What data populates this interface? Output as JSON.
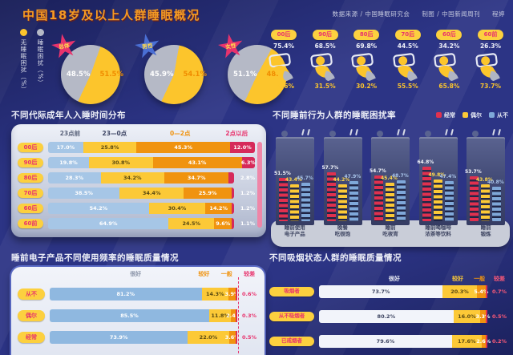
{
  "header": {
    "title": "中国18岁及以上人群睡眠概况",
    "credit_source": "数据来源 / 中国睡眠研究会",
    "credit_maker": "制图 / 中国新闻周刊",
    "credit_author": "程婷"
  },
  "colors": {
    "background": "#2c3485",
    "accent_yellow": "#fcc52c",
    "accent_gray": "#b5b9c6",
    "accent_red": "#d62a5a",
    "accent_orange": "#f0930f",
    "accent_blue": "#a6c6e6",
    "badge_bg": "#fcd03f",
    "badge_text": "#e8336d"
  },
  "chart_data": [
    {
      "type": "pie",
      "name": "overall-sleep-trouble",
      "legend": [
        {
          "label": "无睡眠困扰（%）",
          "color": "#fcc52c"
        },
        {
          "label": "睡眠困扰（%）",
          "color": "#b5b9c6"
        }
      ],
      "pies": [
        {
          "label": "总体",
          "badge_color": "#e8336d",
          "trouble": 48.5,
          "no_trouble": 51.5
        },
        {
          "label": "男性",
          "badge_color": "#4a6fd4",
          "trouble": 45.9,
          "no_trouble": 54.1
        },
        {
          "label": "女性",
          "badge_color": "#e8336d",
          "trouble": 51.1,
          "no_trouble": 48.9
        }
      ]
    },
    {
      "type": "bar",
      "name": "trouble-by-generation-pictogram",
      "groups": [
        {
          "label": "00后",
          "top": 75.4,
          "bottom": 24.6
        },
        {
          "label": "90后",
          "top": 68.5,
          "bottom": 31.5
        },
        {
          "label": "80后",
          "top": 69.8,
          "bottom": 30.2
        },
        {
          "label": "70后",
          "top": 44.5,
          "bottom": 55.5
        },
        {
          "label": "60后",
          "top": 34.2,
          "bottom": 65.8
        },
        {
          "label": "60前",
          "top": 26.3,
          "bottom": 73.7
        }
      ]
    },
    {
      "type": "bar",
      "name": "sleep-time-distribution",
      "title": "不同代际成年人入睡时间分布",
      "stacked": true,
      "columns": [
        "23点前",
        "23—0点",
        "0—2点",
        "2点以后"
      ],
      "colors": [
        "#a6c6e6",
        "#fcc937",
        "#f0930f",
        "#d62a5a"
      ],
      "categories": [
        "00后",
        "90后",
        "80后",
        "70后",
        "60后",
        "60前"
      ],
      "rows": [
        [
          17.0,
          25.8,
          45.3,
          12.0
        ],
        [
          19.8,
          30.8,
          43.1,
          6.3
        ],
        [
          28.3,
          34.2,
          34.7,
          2.8
        ],
        [
          38.5,
          34.4,
          25.9,
          1.2
        ],
        [
          54.2,
          30.4,
          14.2,
          1.2
        ],
        [
          64.9,
          24.5,
          9.6,
          1.1
        ]
      ]
    },
    {
      "type": "bar",
      "name": "bedtime-behavior-trouble-rate",
      "title": "不同睡前行为人群的睡眠困扰率",
      "legend": [
        {
          "label": "经常",
          "color": "#e0314f"
        },
        {
          "label": "偶尔",
          "color": "#fcc937"
        },
        {
          "label": "从不",
          "color": "#7fa8d9"
        }
      ],
      "buildings": [
        {
          "label": [
            "睡前使用",
            "电子产品"
          ],
          "values": [
            51.5,
            43.4,
            45.7
          ]
        },
        {
          "label": [
            "晚餐",
            "吃很饱"
          ],
          "values": [
            57.7,
            44.2,
            47.9
          ]
        },
        {
          "label": [
            "睡前",
            "吃夜宵"
          ],
          "values": [
            54.7,
            45.4,
            48.7
          ]
        },
        {
          "label": [
            "睡前喝咖啡",
            "浓茶等饮料"
          ],
          "values": [
            64.8,
            49.8,
            47.4
          ]
        },
        {
          "label": [
            "睡前",
            "锻炼"
          ],
          "values": [
            53.7,
            43.8,
            40.8
          ]
        }
      ]
    },
    {
      "type": "bar",
      "name": "electronics-frequency-sleep-quality",
      "title": "睡前电子产品不同使用频率的睡眠质量情况",
      "stacked": true,
      "columns": [
        "很好",
        "较好",
        "一般",
        "较差"
      ],
      "categories": [
        "从不",
        "偶尔",
        "经常"
      ],
      "rows": [
        [
          81.2,
          14.3,
          3.9,
          0.6
        ],
        [
          85.5,
          11.8,
          2.4,
          0.3
        ],
        [
          73.9,
          22.0,
          3.6,
          0.5
        ]
      ]
    },
    {
      "type": "bar",
      "name": "smoking-status-sleep-quality",
      "title": "不同吸烟状态人群的睡眠质量情况",
      "stacked": true,
      "columns": [
        "很好",
        "较好",
        "一般",
        "较差"
      ],
      "categories": [
        "吸烟者",
        "从不吸烟者",
        "已戒烟者"
      ],
      "rows": [
        [
          73.7,
          20.3,
          5.4,
          0.7
        ],
        [
          80.2,
          16.0,
          3.3,
          0.5
        ],
        [
          79.6,
          17.6,
          2.6,
          0.2
        ]
      ]
    }
  ]
}
